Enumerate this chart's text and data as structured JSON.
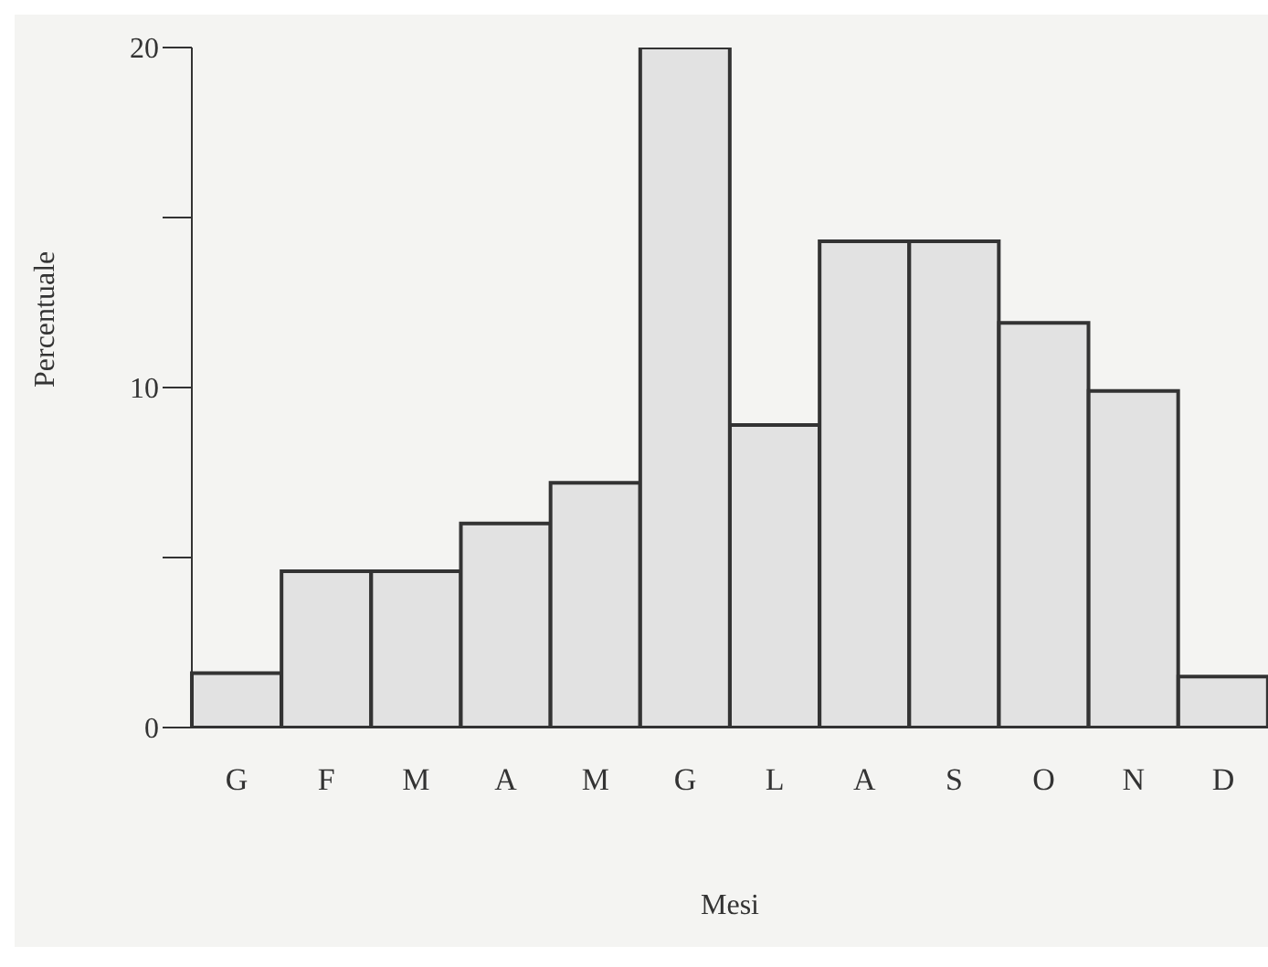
{
  "chart_data": {
    "type": "bar",
    "xlabel": "Mesi",
    "ylabel": "Percentuale",
    "categories": [
      "G",
      "F",
      "M",
      "A",
      "M",
      "G",
      "L",
      "A",
      "S",
      "O",
      "N",
      "D"
    ],
    "values": [
      1.6,
      4.6,
      4.6,
      6.0,
      7.2,
      20,
      8.9,
      14.3,
      14.3,
      11.9,
      9.9,
      1.5
    ],
    "color": "#e2e2e2",
    "ylim": [
      0,
      20
    ],
    "yticks": [
      0,
      {
        "value": 5,
        "label": null
      },
      10,
      {
        "value": 15,
        "label": null
      },
      20
    ],
    "grid": false,
    "legend": false
  }
}
